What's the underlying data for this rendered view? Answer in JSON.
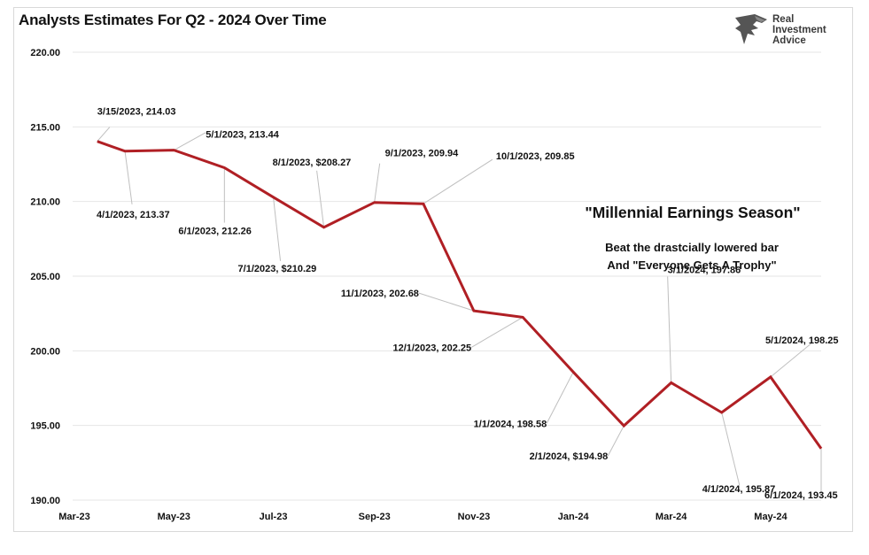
{
  "chart_data": {
    "type": "line",
    "title": "Analysts Estimates For Q2 - 2024 Over Time",
    "xlabel": "",
    "ylabel": "",
    "ylim": [
      190,
      220
    ],
    "xlim": [
      "2023-03-01",
      "2024-06-01"
    ],
    "grid": true,
    "y_ticks": [
      "190.00",
      "195.00",
      "200.00",
      "205.00",
      "210.00",
      "215.00",
      "220.00"
    ],
    "x_ticks": [
      {
        "date": "2023-03-01",
        "label": "Mar-23"
      },
      {
        "date": "2023-05-01",
        "label": "May-23"
      },
      {
        "date": "2023-07-01",
        "label": "Jul-23"
      },
      {
        "date": "2023-09-01",
        "label": "Sep-23"
      },
      {
        "date": "2023-11-01",
        "label": "Nov-23"
      },
      {
        "date": "2024-01-01",
        "label": "Jan-24"
      },
      {
        "date": "2024-03-01",
        "label": "Mar-24"
      },
      {
        "date": "2024-05-01",
        "label": "May-24"
      }
    ],
    "series": [
      {
        "color": "#b01f24",
        "points": [
          {
            "x": "2023-03-15",
            "y": 214.03,
            "label": "3/15/2023,  214.03"
          },
          {
            "x": "2023-04-01",
            "y": 213.37,
            "label": "4/1/2023,  213.37"
          },
          {
            "x": "2023-05-01",
            "y": 213.44,
            "label": "5/1/2023,  213.44"
          },
          {
            "x": "2023-06-01",
            "y": 212.26,
            "label": "6/1/2023,  212.26"
          },
          {
            "x": "2023-07-01",
            "y": 210.29,
            "label": "7/1/2023, $210.29"
          },
          {
            "x": "2023-08-01",
            "y": 208.27,
            "label": "8/1/2023, $208.27"
          },
          {
            "x": "2023-09-01",
            "y": 209.94,
            "label": "9/1/2023,  209.94"
          },
          {
            "x": "2023-10-01",
            "y": 209.85,
            "label": "10/1/2023,  209.85"
          },
          {
            "x": "2023-11-01",
            "y": 202.68,
            "label": "11/1/2023,  202.68"
          },
          {
            "x": "2023-12-01",
            "y": 202.25,
            "label": "12/1/2023,  202.25"
          },
          {
            "x": "2024-01-01",
            "y": 198.58,
            "label": "1/1/2024,  198.58"
          },
          {
            "x": "2024-02-01",
            "y": 194.98,
            "label": "2/1/2024, $194.98"
          },
          {
            "x": "2024-03-01",
            "y": 197.86,
            "label": "3/1/2024,  197.86"
          },
          {
            "x": "2024-04-01",
            "y": 195.87,
            "label": "4/1/2024,  195.87"
          },
          {
            "x": "2024-05-01",
            "y": 198.25,
            "label": "5/1/2024,  198.25"
          },
          {
            "x": "2024-06-01",
            "y": 193.45,
            "label": "6/1/2024,  193.45"
          }
        ]
      }
    ],
    "annotations": [
      "\"Millennial Earnings Season\"",
      "Beat the drastcially lowered bar",
      "And \"Everyone Gets A Trophy\""
    ]
  },
  "logo": {
    "lines": [
      "Real",
      "Investment",
      "Advice"
    ]
  },
  "colors": {
    "line": "#b01f24",
    "grid": "#e6e6e6",
    "leader": "#bfbfbf"
  }
}
